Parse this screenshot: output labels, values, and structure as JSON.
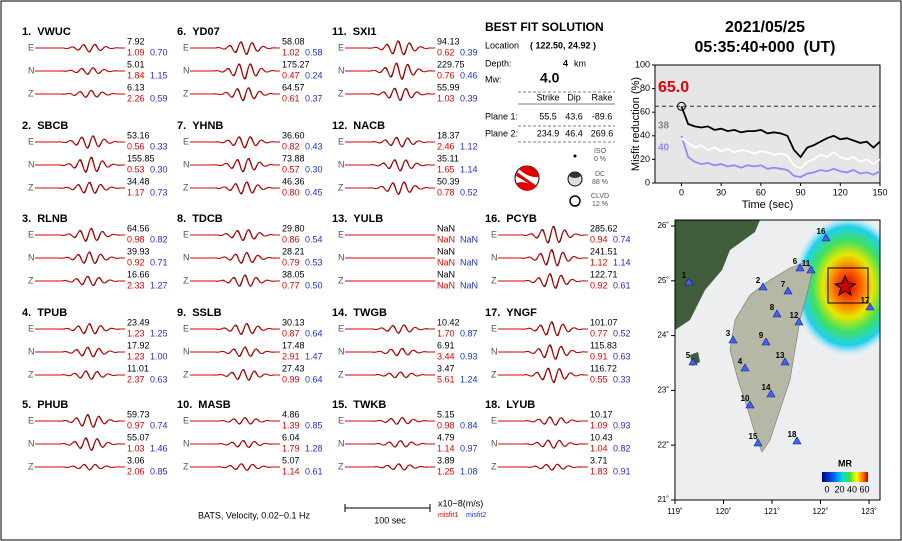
{
  "stations": [
    {
      "number": "1.",
      "name": "VWUC",
      "components": [
        {
          "label": "E",
          "amplitude": "7.92",
          "misfit1": "1.09",
          "misfit2": "0.70"
        },
        {
          "label": "N",
          "amplitude": "5.01",
          "misfit1": "1.84",
          "misfit2": "1.15"
        },
        {
          "label": "Z",
          "amplitude": "6.13",
          "misfit1": "2.26",
          "misfit2": "0.59"
        }
      ]
    },
    {
      "number": "2.",
      "name": "SBCB",
      "components": [
        {
          "label": "E",
          "amplitude": "53.16",
          "misfit1": "0.56",
          "misfit2": "0.33"
        },
        {
          "label": "N",
          "amplitude": "155.85",
          "misfit1": "0.53",
          "misfit2": "0.30"
        },
        {
          "label": "Z",
          "amplitude": "34.48",
          "misfit1": "1.17",
          "misfit2": "0.73"
        }
      ]
    },
    {
      "number": "3.",
      "name": "RLNB",
      "components": [
        {
          "label": "E",
          "amplitude": "64.56",
          "misfit1": "0.98",
          "misfit2": "0.82"
        },
        {
          "label": "N",
          "amplitude": "39.93",
          "misfit1": "0.92",
          "misfit2": "0.71"
        },
        {
          "label": "Z",
          "amplitude": "16.66",
          "misfit1": "2.33",
          "misfit2": "1.27"
        }
      ]
    },
    {
      "number": "4.",
      "name": "TPUB",
      "components": [
        {
          "label": "E",
          "amplitude": "23.49",
          "misfit1": "1.23",
          "misfit2": "1.25"
        },
        {
          "label": "N",
          "amplitude": "17.92",
          "misfit1": "1.23",
          "misfit2": "1.00"
        },
        {
          "label": "Z",
          "amplitude": "11.01",
          "misfit1": "2.37",
          "misfit2": "0.63"
        }
      ]
    },
    {
      "number": "5.",
      "name": "PHUB",
      "components": [
        {
          "label": "E",
          "amplitude": "59.73",
          "misfit1": "0.97",
          "misfit2": "0.74"
        },
        {
          "label": "N",
          "amplitude": "55.07",
          "misfit1": "1.03",
          "misfit2": "1.46"
        },
        {
          "label": "Z",
          "amplitude": "3.06",
          "misfit1": "2.06",
          "misfit2": "0.85"
        }
      ]
    },
    {
      "number": "6.",
      "name": "YD07",
      "components": [
        {
          "label": "E",
          "amplitude": "58.08",
          "misfit1": "1.02",
          "misfit2": "0.58"
        },
        {
          "label": "N",
          "amplitude": "175.27",
          "misfit1": "0.47",
          "misfit2": "0.24"
        },
        {
          "label": "Z",
          "amplitude": "64.57",
          "misfit1": "0.61",
          "misfit2": "0.37"
        }
      ]
    },
    {
      "number": "7.",
      "name": "YHNB",
      "components": [
        {
          "label": "E",
          "amplitude": "36.60",
          "misfit1": "0.82",
          "misfit2": "0.43"
        },
        {
          "label": "N",
          "amplitude": "73.88",
          "misfit1": "0.57",
          "misfit2": "0.30"
        },
        {
          "label": "Z",
          "amplitude": "46.36",
          "misfit1": "0.80",
          "misfit2": "0.45"
        }
      ]
    },
    {
      "number": "8.",
      "name": "TDCB",
      "components": [
        {
          "label": "E",
          "amplitude": "29.80",
          "misfit1": "0.86",
          "misfit2": "0.54"
        },
        {
          "label": "N",
          "amplitude": "28.21",
          "misfit1": "0.79",
          "misfit2": "0.53"
        },
        {
          "label": "Z",
          "amplitude": "38.05",
          "misfit1": "0.77",
          "misfit2": "0.50"
        }
      ]
    },
    {
      "number": "9.",
      "name": "SSLB",
      "components": [
        {
          "label": "E",
          "amplitude": "30.13",
          "misfit1": "0.87",
          "misfit2": "0.64"
        },
        {
          "label": "N",
          "amplitude": "17.48",
          "misfit1": "2.91",
          "misfit2": "1.47"
        },
        {
          "label": "Z",
          "amplitude": "27.43",
          "misfit1": "0.99",
          "misfit2": "0.64"
        }
      ]
    },
    {
      "number": "10.",
      "name": "MASB",
      "components": [
        {
          "label": "E",
          "amplitude": "4.86",
          "misfit1": "1.39",
          "misfit2": "0.85"
        },
        {
          "label": "N",
          "amplitude": "6.04",
          "misfit1": "1.79",
          "misfit2": "1.28"
        },
        {
          "label": "Z",
          "amplitude": "5.07",
          "misfit1": "1.14",
          "misfit2": "0.61"
        }
      ]
    },
    {
      "number": "11.",
      "name": "SXI1",
      "components": [
        {
          "label": "E",
          "amplitude": "94.13",
          "misfit1": "0.62",
          "misfit2": "0.39"
        },
        {
          "label": "N",
          "amplitude": "229.75",
          "misfit1": "0.76",
          "misfit2": "0.46"
        },
        {
          "label": "Z",
          "amplitude": "55.99",
          "misfit1": "1.03",
          "misfit2": "0.39"
        }
      ]
    },
    {
      "number": "12.",
      "name": "NACB",
      "components": [
        {
          "label": "E",
          "amplitude": "18.37",
          "misfit1": "2.46",
          "misfit2": "1.12"
        },
        {
          "label": "N",
          "amplitude": "35.11",
          "misfit1": "1.65",
          "misfit2": "1.14"
        },
        {
          "label": "Z",
          "amplitude": "50.39",
          "misfit1": "0.78",
          "misfit2": "0.52"
        }
      ]
    },
    {
      "number": "13.",
      "name": "YULB",
      "components": [
        {
          "label": "E",
          "amplitude": "NaN",
          "misfit1": "NaN",
          "misfit2": "NaN"
        },
        {
          "label": "N",
          "amplitude": "NaN",
          "misfit1": "NaN",
          "misfit2": "NaN"
        },
        {
          "label": "Z",
          "amplitude": "NaN",
          "misfit1": "NaN",
          "misfit2": "NaN"
        }
      ]
    },
    {
      "number": "14.",
      "name": "TWGB",
      "components": [
        {
          "label": "E",
          "amplitude": "10.42",
          "misfit1": "1.70",
          "misfit2": "0.87"
        },
        {
          "label": "N",
          "amplitude": "6.91",
          "misfit1": "3.44",
          "misfit2": "0.93"
        },
        {
          "label": "Z",
          "amplitude": "3.47",
          "misfit1": "5.61",
          "misfit2": "1.24"
        }
      ]
    },
    {
      "number": "15.",
      "name": "TWKB",
      "components": [
        {
          "label": "E",
          "amplitude": "5.15",
          "misfit1": "0.98",
          "misfit2": "0.84"
        },
        {
          "label": "N",
          "amplitude": "4.79",
          "misfit1": "1.14",
          "misfit2": "0.97"
        },
        {
          "label": "Z",
          "amplitude": "3.89",
          "misfit1": "1.25",
          "misfit2": "1.08"
        }
      ]
    },
    {
      "number": "16.",
      "name": "PCYB",
      "components": [
        {
          "label": "E",
          "amplitude": "285.62",
          "misfit1": "0.94",
          "misfit2": "0.74"
        },
        {
          "label": "N",
          "amplitude": "241.51",
          "misfit1": "1.12",
          "misfit2": "1.14"
        },
        {
          "label": "Z",
          "amplitude": "122.71",
          "misfit1": "0.92",
          "misfit2": "0.61"
        }
      ]
    },
    {
      "number": "17.",
      "name": "YNGF",
      "components": [
        {
          "label": "E",
          "amplitude": "101.07",
          "misfit1": "0.77",
          "misfit2": "0.52"
        },
        {
          "label": "N",
          "amplitude": "115.83",
          "misfit1": "0.91",
          "misfit2": "0.63"
        },
        {
          "label": "Z",
          "amplitude": "116.72",
          "misfit1": "0.55",
          "misfit2": "0.33"
        }
      ]
    },
    {
      "number": "18.",
      "name": "LYUB",
      "components": [
        {
          "label": "E",
          "amplitude": "10.17",
          "misfit1": "1.09",
          "misfit2": "0.93"
        },
        {
          "label": "N",
          "amplitude": "10.43",
          "misfit1": "1.04",
          "misfit2": "0.82"
        },
        {
          "label": "Z",
          "amplitude": "3.71",
          "misfit1": "1.83",
          "misfit2": "0.91"
        }
      ]
    }
  ],
  "solution": {
    "title": "BEST FIT SOLUTION",
    "location_label": "Location",
    "location": "( 122.50, 24.92 )",
    "depth_label": "Depth:",
    "depth": "4",
    "depth_unit": "km",
    "mw_label": "Mw:",
    "mw": "4.0",
    "headers": [
      "Strike",
      "Dip",
      "Rake"
    ],
    "planes": [
      {
        "label": "Plane 1:",
        "values": [
          "55.5",
          "43.6",
          "-89.6"
        ]
      },
      {
        "label": "Plane 2:",
        "values": [
          "234.9",
          "46.4",
          "269.6"
        ]
      }
    ],
    "components": [
      {
        "name": "ISO",
        "percent": "0 %"
      },
      {
        "name": "DC",
        "percent": "88 %"
      },
      {
        "name": "CLVD",
        "percent": "12 %"
      }
    ]
  },
  "footer": {
    "caption": "BATS, Velocity, 0.02~0.1 Hz",
    "scale": "100 sec",
    "units": "x10~8(m/s)",
    "misfit1": "misfit1",
    "misfit2": "misfit2"
  },
  "datetime": {
    "date": "2021/05/25",
    "time": "05:35:40+000  (UT)"
  },
  "chart_data": {
    "type": "line",
    "xlabel": "Time (sec)",
    "ylabel": "Misfit reduction (%)",
    "x": [
      0,
      5,
      10,
      15,
      20,
      25,
      30,
      35,
      40,
      45,
      50,
      55,
      60,
      65,
      70,
      75,
      80,
      85,
      90,
      95,
      100,
      105,
      110,
      115,
      120,
      125,
      130,
      135,
      140,
      145,
      150
    ],
    "series": [
      {
        "color": "#000000",
        "values": [
          65,
          50,
          48,
          47,
          48,
          45,
          46,
          44,
          45,
          43,
          44,
          44,
          45,
          42,
          43,
          42,
          40,
          28,
          22,
          30,
          32,
          35,
          38,
          40,
          37,
          38,
          36,
          34,
          35,
          30,
          35
        ]
      },
      {
        "color": "#ffffff",
        "values": [
          38,
          34,
          30,
          32,
          28,
          30,
          27,
          29,
          26,
          28,
          27,
          25,
          27,
          26,
          24,
          25,
          23,
          15,
          12,
          18,
          20,
          24,
          22,
          26,
          22,
          20,
          22,
          18,
          20,
          16,
          20
        ]
      },
      {
        "color": "#8c8cff",
        "values": [
          40,
          22,
          18,
          16,
          17,
          15,
          16,
          14,
          15,
          13,
          15,
          14,
          15,
          12,
          13,
          12,
          11,
          6,
          5,
          8,
          9,
          11,
          10,
          12,
          10,
          9,
          11,
          8,
          9,
          7,
          10
        ]
      }
    ],
    "annotations": [
      {
        "text": "65.0",
        "color": "#e00000"
      },
      {
        "text": "38",
        "color": "#888888"
      },
      {
        "text": "40",
        "color": "#8c8cff"
      }
    ],
    "xlim": [
      -20,
      150
    ],
    "ylim": [
      0,
      100
    ],
    "xticks": [
      0,
      30,
      60,
      90,
      120,
      150
    ],
    "yticks": [
      0,
      20,
      40,
      60,
      80,
      100
    ]
  },
  "map": {
    "xticks": [
      "119˚",
      "120˚",
      "121˚",
      "122˚",
      "123˚"
    ],
    "yticks": [
      "26˚",
      "25˚",
      "24˚",
      "23˚",
      "22˚",
      "21˚"
    ],
    "station_labels": [
      "1",
      "2",
      "3",
      "4",
      "5",
      "6",
      "7",
      "8",
      "9",
      "10",
      "11",
      "12",
      "13",
      "14",
      "15",
      "16",
      "17",
      "18"
    ],
    "colorbar": {
      "title": "MR",
      "ticks": [
        "0",
        "20",
        "40",
        "60"
      ]
    }
  }
}
